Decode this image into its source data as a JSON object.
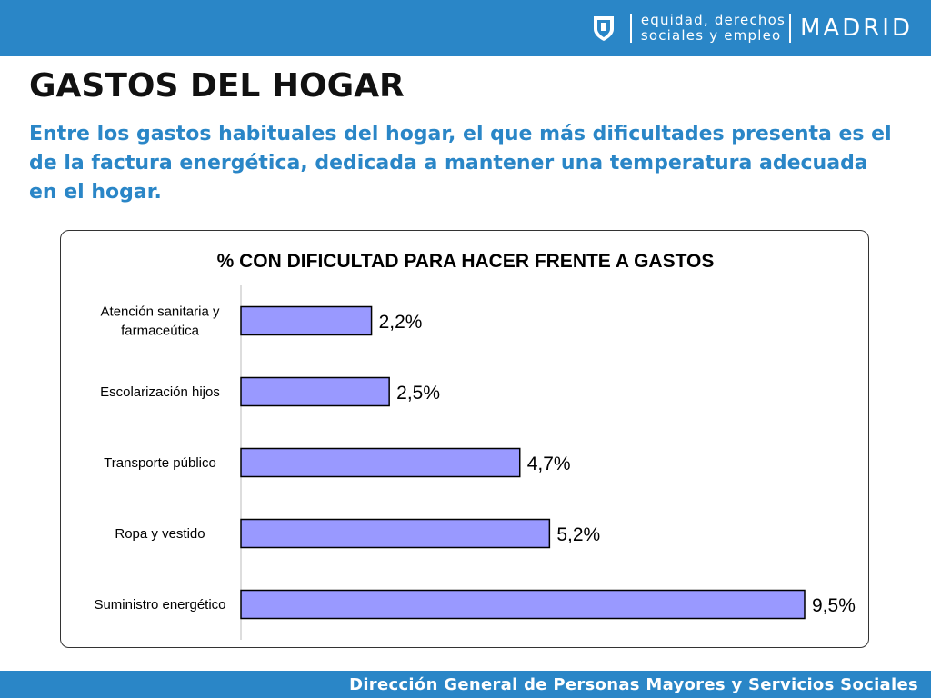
{
  "header": {
    "brand_line1": "equidad, derechos",
    "brand_line2": "sociales y empleo",
    "brand_name": "MADRID",
    "bar_color": "#2a86c7"
  },
  "title": "GASTOS DEL HOGAR",
  "subtitle": "Entre los gastos habituales del hogar, el que más dificultades presenta es el de la factura energética, dedicada a mantener una temperatura adecuada en el hogar.",
  "footer": "Dirección General de Personas Mayores y Servicios Sociales",
  "chart_data": {
    "type": "bar",
    "orientation": "horizontal",
    "title": "% CON DIFICULTAD PARA HACER FRENTE A GASTOS",
    "categories": [
      [
        "Atención sanitaria y",
        "farmaceútica"
      ],
      [
        "Escolarización hijos"
      ],
      [
        "Transporte público"
      ],
      [
        "Ropa y vestido"
      ],
      [
        "Suministro energético"
      ]
    ],
    "values": [
      2.2,
      2.5,
      4.7,
      5.2,
      9.5
    ],
    "value_labels": [
      "2,2%",
      "2,5%",
      "4,7%",
      "5,2%",
      "9,5%"
    ],
    "xlim": [
      0,
      9.5
    ],
    "bar_color": "#9999ff",
    "grid": false,
    "legend": "none"
  }
}
